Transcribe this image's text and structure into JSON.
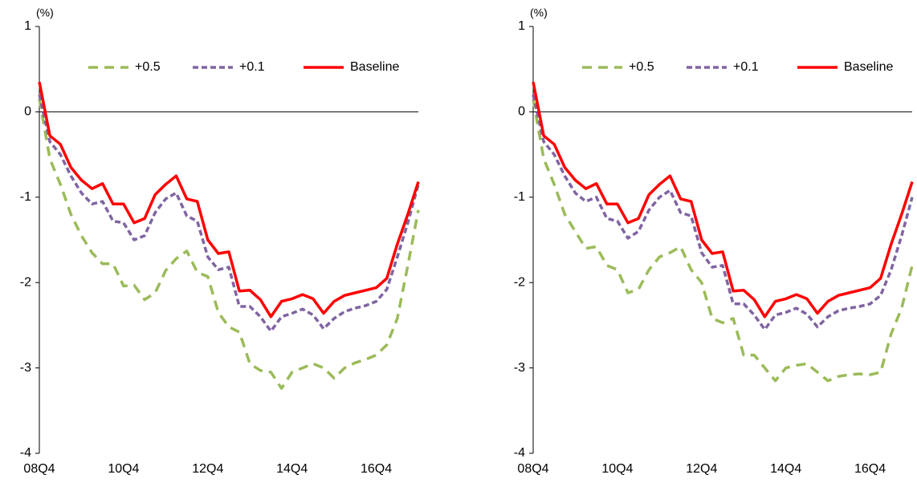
{
  "chart_data": [
    {
      "type": "line",
      "y_unit": "(%)",
      "categories": [
        "08Q4",
        null,
        null,
        null,
        null,
        null,
        null,
        null,
        "10Q4",
        null,
        null,
        null,
        null,
        null,
        null,
        null,
        "12Q4",
        null,
        null,
        null,
        null,
        null,
        null,
        null,
        "14Q4",
        null,
        null,
        null,
        null,
        null,
        null,
        null,
        "16Q4",
        null,
        null,
        null,
        null
      ],
      "ylim": [
        -4,
        1
      ],
      "yticks": [
        -4,
        -3,
        -2,
        -1,
        0,
        1
      ],
      "legend": "top",
      "series": [
        {
          "name": "+0.5",
          "color": "#9bbb59",
          "dash": "long",
          "values": [
            0.15,
            -0.55,
            -0.85,
            -1.2,
            -1.45,
            -1.65,
            -1.78,
            -1.78,
            -2.04,
            -2.03,
            -2.2,
            -2.12,
            -1.86,
            -1.72,
            -1.63,
            -1.88,
            -1.93,
            -2.35,
            -2.52,
            -2.58,
            -2.95,
            -3.03,
            -3.05,
            -3.24,
            -3.05,
            -3.0,
            -2.95,
            -3.0,
            -3.12,
            -3.0,
            -2.94,
            -2.9,
            -2.85,
            -2.73,
            -2.42,
            -1.8,
            -1.15
          ]
        },
        {
          "name": "+0.1",
          "color": "#8064a2",
          "dash": "short",
          "values": [
            0.2,
            -0.35,
            -0.5,
            -0.75,
            -0.95,
            -1.08,
            -1.05,
            -1.28,
            -1.3,
            -1.5,
            -1.45,
            -1.18,
            -1.02,
            -0.95,
            -1.22,
            -1.28,
            -1.7,
            -1.85,
            -1.82,
            -2.28,
            -2.28,
            -2.4,
            -2.57,
            -2.4,
            -2.36,
            -2.31,
            -2.38,
            -2.54,
            -2.42,
            -2.34,
            -2.3,
            -2.27,
            -2.22,
            -2.08,
            -1.7,
            -1.3,
            -0.85
          ]
        },
        {
          "name": "Baseline",
          "color": "#ff0000",
          "dash": "solid",
          "values": [
            0.35,
            -0.28,
            -0.38,
            -0.65,
            -0.8,
            -0.9,
            -0.84,
            -1.08,
            -1.08,
            -1.3,
            -1.25,
            -0.97,
            -0.85,
            -0.75,
            -1.02,
            -1.05,
            -1.5,
            -1.66,
            -1.64,
            -2.1,
            -2.09,
            -2.2,
            -2.4,
            -2.22,
            -2.19,
            -2.14,
            -2.19,
            -2.36,
            -2.22,
            -2.15,
            -2.12,
            -2.09,
            -2.06,
            -1.95,
            -1.55,
            -1.2,
            -0.82
          ]
        }
      ]
    },
    {
      "type": "line",
      "y_unit": "(%)",
      "categories": [
        "08Q4",
        null,
        null,
        null,
        null,
        null,
        null,
        null,
        "10Q4",
        null,
        null,
        null,
        null,
        null,
        null,
        null,
        "12Q4",
        null,
        null,
        null,
        null,
        null,
        null,
        null,
        "14Q4",
        null,
        null,
        null,
        null,
        null,
        null,
        null,
        "16Q4",
        null,
        null,
        null,
        null
      ],
      "ylim": [
        -4,
        1
      ],
      "yticks": [
        -4,
        -3,
        -2,
        -1,
        0,
        1
      ],
      "legend": "top",
      "series": [
        {
          "name": "+0.5",
          "color": "#9bbb59",
          "dash": "long",
          "values": [
            0.15,
            -0.55,
            -0.85,
            -1.2,
            -1.4,
            -1.6,
            -1.58,
            -1.8,
            -1.85,
            -2.12,
            -2.08,
            -1.85,
            -1.7,
            -1.65,
            -1.58,
            -1.85,
            -2.0,
            -2.42,
            -2.47,
            -2.42,
            -2.85,
            -2.85,
            -3.0,
            -3.15,
            -3.0,
            -2.97,
            -2.95,
            -3.05,
            -3.15,
            -3.1,
            -3.08,
            -3.07,
            -3.08,
            -3.05,
            -2.6,
            -2.3,
            -1.8
          ]
        },
        {
          "name": "+0.1",
          "color": "#8064a2",
          "dash": "short",
          "values": [
            0.2,
            -0.35,
            -0.5,
            -0.75,
            -0.95,
            -1.05,
            -1.0,
            -1.25,
            -1.28,
            -1.48,
            -1.4,
            -1.15,
            -1.0,
            -0.92,
            -1.18,
            -1.22,
            -1.65,
            -1.82,
            -1.8,
            -2.25,
            -2.25,
            -2.38,
            -2.55,
            -2.38,
            -2.35,
            -2.3,
            -2.37,
            -2.52,
            -2.4,
            -2.33,
            -2.3,
            -2.28,
            -2.25,
            -2.15,
            -1.85,
            -1.45,
            -1.0
          ]
        },
        {
          "name": "Baseline",
          "color": "#ff0000",
          "dash": "solid",
          "values": [
            0.35,
            -0.28,
            -0.38,
            -0.65,
            -0.8,
            -0.9,
            -0.84,
            -1.08,
            -1.08,
            -1.3,
            -1.25,
            -0.97,
            -0.85,
            -0.75,
            -1.02,
            -1.05,
            -1.5,
            -1.66,
            -1.64,
            -2.1,
            -2.09,
            -2.2,
            -2.4,
            -2.22,
            -2.19,
            -2.14,
            -2.19,
            -2.36,
            -2.22,
            -2.15,
            -2.12,
            -2.09,
            -2.06,
            -1.95,
            -1.55,
            -1.2,
            -0.82
          ]
        }
      ]
    }
  ]
}
